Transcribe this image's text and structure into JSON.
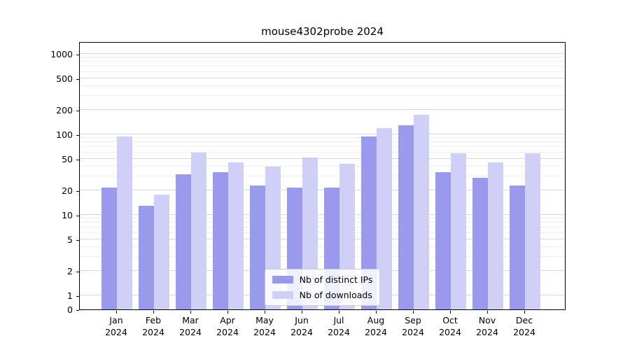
{
  "figure": {
    "background": "#ffffff"
  },
  "chart_data": {
    "type": "bar",
    "title": "mouse4302probe 2024",
    "scale": "log",
    "grid": "horizontal",
    "legend_position": "lower center",
    "categories": [
      "Jan",
      "Feb",
      "Mar",
      "Apr",
      "May",
      "Jun",
      "Jul",
      "Aug",
      "Sep",
      "Oct",
      "Nov",
      "Dec"
    ],
    "x_labels_line2": "2024",
    "yticks": [
      0,
      1,
      2,
      5,
      10,
      20,
      50,
      100,
      200,
      500,
      1000
    ],
    "ylim": [
      0,
      1000
    ],
    "series": [
      {
        "name": "Nb of distinct IPs",
        "color": "#9999ee",
        "values": [
          22,
          13,
          32,
          34,
          23,
          22,
          22,
          95,
          130,
          34,
          29,
          23
        ]
      },
      {
        "name": "Nb of downloads",
        "color": "#cfcff7",
        "values": [
          95,
          18,
          60,
          45,
          40,
          52,
          43,
          120,
          175,
          58,
          45,
          58
        ]
      }
    ]
  }
}
